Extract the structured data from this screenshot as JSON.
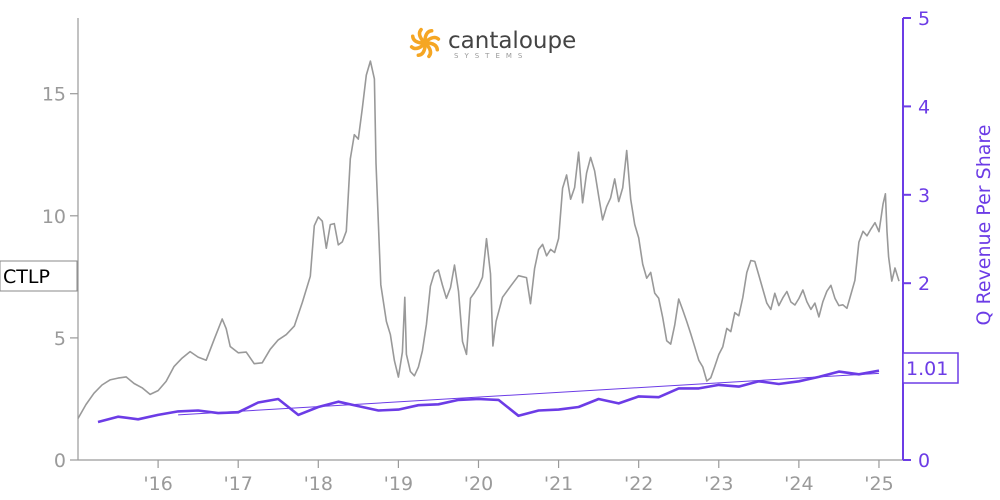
{
  "logo": {
    "name": "cantaloupe",
    "subtitle": "SYSTEMS",
    "color": "#f5a623"
  },
  "ticker_label": "CTLP",
  "last_revenue_label": "1.01",
  "chart_data": {
    "type": "line",
    "title": "",
    "xlabel": "",
    "ylabel_left": "",
    "ylabel_right": "Q Revenue Per Share",
    "colors": {
      "price": "#999999",
      "revenue": "#6c3ce6",
      "axis_left": "#9a9a9a",
      "axis_right": "#6c3ce6"
    },
    "x_range": [
      2015.0,
      2025.3
    ],
    "y_left_range": [
      0,
      18.1
    ],
    "y_right_range": [
      0,
      5
    ],
    "x_ticks": [
      {
        "value": 2016,
        "label": "'16"
      },
      {
        "value": 2017,
        "label": "'17"
      },
      {
        "value": 2018,
        "label": "'18"
      },
      {
        "value": 2019,
        "label": "'19"
      },
      {
        "value": 2020,
        "label": "'20"
      },
      {
        "value": 2021,
        "label": "'21"
      },
      {
        "value": 2022,
        "label": "'22"
      },
      {
        "value": 2023,
        "label": "'23"
      },
      {
        "value": 2024,
        "label": "'24"
      },
      {
        "value": 2025,
        "label": "'25"
      }
    ],
    "y_left_ticks": [
      {
        "value": 0,
        "label": "0"
      },
      {
        "value": 5,
        "label": "5"
      },
      {
        "value": 10,
        "label": "10"
      },
      {
        "value": 15,
        "label": "15"
      }
    ],
    "y_right_ticks": [
      {
        "value": 0,
        "label": "0"
      },
      {
        "value": 1,
        "label": "1"
      },
      {
        "value": 2,
        "label": "2"
      },
      {
        "value": 3,
        "label": "3"
      },
      {
        "value": 4,
        "label": "4"
      },
      {
        "value": 5,
        "label": "5"
      }
    ],
    "series": [
      {
        "axis": "left",
        "points": [
          [
            2015.0,
            1.7
          ],
          [
            2015.1,
            2.2
          ],
          [
            2015.2,
            2.6
          ],
          [
            2015.3,
            2.9
          ],
          [
            2015.4,
            3.1
          ],
          [
            2015.5,
            3.2
          ],
          [
            2015.6,
            3.3
          ],
          [
            2015.7,
            3.1
          ],
          [
            2015.8,
            3.0
          ],
          [
            2015.9,
            2.8
          ],
          [
            2016.0,
            3.0
          ],
          [
            2016.1,
            3.4
          ],
          [
            2016.2,
            4.0
          ],
          [
            2016.3,
            4.3
          ],
          [
            2016.4,
            4.5
          ],
          [
            2016.5,
            4.2
          ],
          [
            2016.6,
            4.0
          ],
          [
            2016.7,
            4.8
          ],
          [
            2016.8,
            5.6
          ],
          [
            2016.85,
            5.2
          ],
          [
            2016.9,
            4.5
          ],
          [
            2017.0,
            4.3
          ],
          [
            2017.1,
            4.4
          ],
          [
            2017.2,
            4.0
          ],
          [
            2017.3,
            4.1
          ],
          [
            2017.4,
            4.7
          ],
          [
            2017.5,
            5.1
          ],
          [
            2017.6,
            5.3
          ],
          [
            2017.7,
            5.6
          ],
          [
            2017.8,
            6.5
          ],
          [
            2017.9,
            7.5
          ],
          [
            2017.95,
            9.5
          ],
          [
            2018.0,
            9.8
          ],
          [
            2018.05,
            9.6
          ],
          [
            2018.1,
            8.5
          ],
          [
            2018.15,
            9.5
          ],
          [
            2018.2,
            9.6
          ],
          [
            2018.25,
            8.8
          ],
          [
            2018.3,
            9.0
          ],
          [
            2018.35,
            9.5
          ],
          [
            2018.4,
            12.5
          ],
          [
            2018.45,
            13.5
          ],
          [
            2018.5,
            13.3
          ],
          [
            2018.55,
            14.5
          ],
          [
            2018.6,
            15.8
          ],
          [
            2018.65,
            16.3
          ],
          [
            2018.7,
            15.5
          ],
          [
            2018.72,
            12.0
          ],
          [
            2018.78,
            7.0
          ],
          [
            2018.85,
            5.5
          ],
          [
            2018.9,
            5.0
          ],
          [
            2018.95,
            4.0
          ],
          [
            2019.0,
            3.4
          ],
          [
            2019.05,
            4.5
          ],
          [
            2019.08,
            6.8
          ],
          [
            2019.1,
            4.5
          ],
          [
            2019.15,
            3.8
          ],
          [
            2019.2,
            3.6
          ],
          [
            2019.25,
            3.9
          ],
          [
            2019.3,
            4.5
          ],
          [
            2019.35,
            5.5
          ],
          [
            2019.4,
            7.0
          ],
          [
            2019.45,
            7.5
          ],
          [
            2019.5,
            7.6
          ],
          [
            2019.55,
            7.0
          ],
          [
            2019.6,
            6.5
          ],
          [
            2019.65,
            7.0
          ],
          [
            2019.7,
            8.0
          ],
          [
            2019.75,
            7.0
          ],
          [
            2019.8,
            5.0
          ],
          [
            2019.85,
            4.5
          ],
          [
            2019.9,
            6.8
          ],
          [
            2019.95,
            7.0
          ],
          [
            2020.0,
            7.2
          ],
          [
            2020.05,
            7.5
          ],
          [
            2020.1,
            9.0
          ],
          [
            2020.15,
            7.5
          ],
          [
            2020.18,
            4.5
          ],
          [
            2020.22,
            5.5
          ],
          [
            2020.3,
            6.5
          ],
          [
            2020.4,
            7.0
          ],
          [
            2020.5,
            7.5
          ],
          [
            2020.6,
            7.5
          ],
          [
            2020.65,
            6.5
          ],
          [
            2020.7,
            8.0
          ],
          [
            2020.75,
            8.8
          ],
          [
            2020.8,
            9.0
          ],
          [
            2020.85,
            8.5
          ],
          [
            2020.9,
            8.7
          ],
          [
            2020.95,
            8.5
          ],
          [
            2021.0,
            9.0
          ],
          [
            2021.05,
            11.0
          ],
          [
            2021.1,
            11.5
          ],
          [
            2021.15,
            10.5
          ],
          [
            2021.2,
            11.0
          ],
          [
            2021.25,
            12.5
          ],
          [
            2021.3,
            10.5
          ],
          [
            2021.35,
            11.8
          ],
          [
            2021.4,
            12.5
          ],
          [
            2021.45,
            12.0
          ],
          [
            2021.5,
            11.0
          ],
          [
            2021.55,
            10.0
          ],
          [
            2021.6,
            10.5
          ],
          [
            2021.65,
            10.8
          ],
          [
            2021.7,
            11.5
          ],
          [
            2021.75,
            10.5
          ],
          [
            2021.8,
            11.0
          ],
          [
            2021.85,
            12.5
          ],
          [
            2021.9,
            10.5
          ],
          [
            2021.95,
            9.5
          ],
          [
            2022.0,
            9.0
          ],
          [
            2022.05,
            8.0
          ],
          [
            2022.1,
            7.5
          ],
          [
            2022.15,
            7.8
          ],
          [
            2022.2,
            7.0
          ],
          [
            2022.25,
            6.8
          ],
          [
            2022.3,
            6.0
          ],
          [
            2022.35,
            5.0
          ],
          [
            2022.4,
            4.8
          ],
          [
            2022.45,
            5.5
          ],
          [
            2022.5,
            6.5
          ],
          [
            2022.55,
            6.0
          ],
          [
            2022.6,
            5.5
          ],
          [
            2022.65,
            5.0
          ],
          [
            2022.7,
            4.5
          ],
          [
            2022.75,
            4.0
          ],
          [
            2022.8,
            3.8
          ],
          [
            2022.85,
            3.3
          ],
          [
            2022.9,
            3.5
          ],
          [
            2022.95,
            4.0
          ],
          [
            2023.0,
            4.5
          ],
          [
            2023.05,
            4.8
          ],
          [
            2023.1,
            5.5
          ],
          [
            2023.15,
            5.3
          ],
          [
            2023.2,
            6.0
          ],
          [
            2023.25,
            5.8
          ],
          [
            2023.3,
            6.5
          ],
          [
            2023.35,
            7.5
          ],
          [
            2023.4,
            8.0
          ],
          [
            2023.45,
            8.0
          ],
          [
            2023.5,
            7.5
          ],
          [
            2023.55,
            7.0
          ],
          [
            2023.6,
            6.5
          ],
          [
            2023.65,
            6.3
          ],
          [
            2023.7,
            7.0
          ],
          [
            2023.75,
            6.5
          ],
          [
            2023.8,
            6.8
          ],
          [
            2023.85,
            7.0
          ],
          [
            2023.9,
            6.5
          ],
          [
            2023.95,
            6.3
          ],
          [
            2024.0,
            6.5
          ],
          [
            2024.05,
            6.8
          ],
          [
            2024.1,
            6.3
          ],
          [
            2024.15,
            6.0
          ],
          [
            2024.2,
            6.3
          ],
          [
            2024.25,
            5.8
          ],
          [
            2024.3,
            6.5
          ],
          [
            2024.35,
            7.0
          ],
          [
            2024.4,
            7.3
          ],
          [
            2024.45,
            6.8
          ],
          [
            2024.5,
            6.5
          ],
          [
            2024.55,
            6.5
          ],
          [
            2024.6,
            6.3
          ],
          [
            2024.65,
            6.8
          ],
          [
            2024.7,
            7.3
          ],
          [
            2024.75,
            8.8
          ],
          [
            2024.8,
            9.2
          ],
          [
            2024.85,
            9.0
          ],
          [
            2024.9,
            9.3
          ],
          [
            2024.95,
            9.6
          ],
          [
            2025.0,
            9.3
          ],
          [
            2025.05,
            10.5
          ],
          [
            2025.08,
            11.0
          ],
          [
            2025.1,
            9.5
          ],
          [
            2025.12,
            8.5
          ],
          [
            2025.16,
            7.5
          ],
          [
            2025.2,
            8.0
          ],
          [
            2025.25,
            7.4
          ]
        ]
      },
      {
        "axis": "right",
        "points": [
          [
            2015.25,
            0.43
          ],
          [
            2015.5,
            0.49
          ],
          [
            2015.75,
            0.46
          ],
          [
            2016.0,
            0.51
          ],
          [
            2016.25,
            0.55
          ],
          [
            2016.5,
            0.56
          ],
          [
            2016.75,
            0.53
          ],
          [
            2017.0,
            0.54
          ],
          [
            2017.25,
            0.65
          ],
          [
            2017.5,
            0.69
          ],
          [
            2017.75,
            0.51
          ],
          [
            2018.0,
            0.6
          ],
          [
            2018.25,
            0.66
          ],
          [
            2018.5,
            0.61
          ],
          [
            2018.75,
            0.56
          ],
          [
            2019.0,
            0.57
          ],
          [
            2019.25,
            0.62
          ],
          [
            2019.5,
            0.63
          ],
          [
            2019.75,
            0.68
          ],
          [
            2020.0,
            0.69
          ],
          [
            2020.25,
            0.68
          ],
          [
            2020.5,
            0.5
          ],
          [
            2020.75,
            0.56
          ],
          [
            2021.0,
            0.57
          ],
          [
            2021.25,
            0.6
          ],
          [
            2021.5,
            0.69
          ],
          [
            2021.75,
            0.64
          ],
          [
            2022.0,
            0.72
          ],
          [
            2022.25,
            0.71
          ],
          [
            2022.5,
            0.81
          ],
          [
            2022.75,
            0.81
          ],
          [
            2023.0,
            0.85
          ],
          [
            2023.25,
            0.83
          ],
          [
            2023.5,
            0.89
          ],
          [
            2023.75,
            0.86
          ],
          [
            2024.0,
            0.89
          ],
          [
            2024.25,
            0.94
          ],
          [
            2024.5,
            1.0
          ],
          [
            2024.75,
            0.97
          ],
          [
            2025.0,
            1.01
          ]
        ]
      }
    ],
    "trend": {
      "axis": "right",
      "points": [
        [
          2016.25,
          0.51
        ],
        [
          2025.0,
          0.98
        ]
      ]
    }
  }
}
